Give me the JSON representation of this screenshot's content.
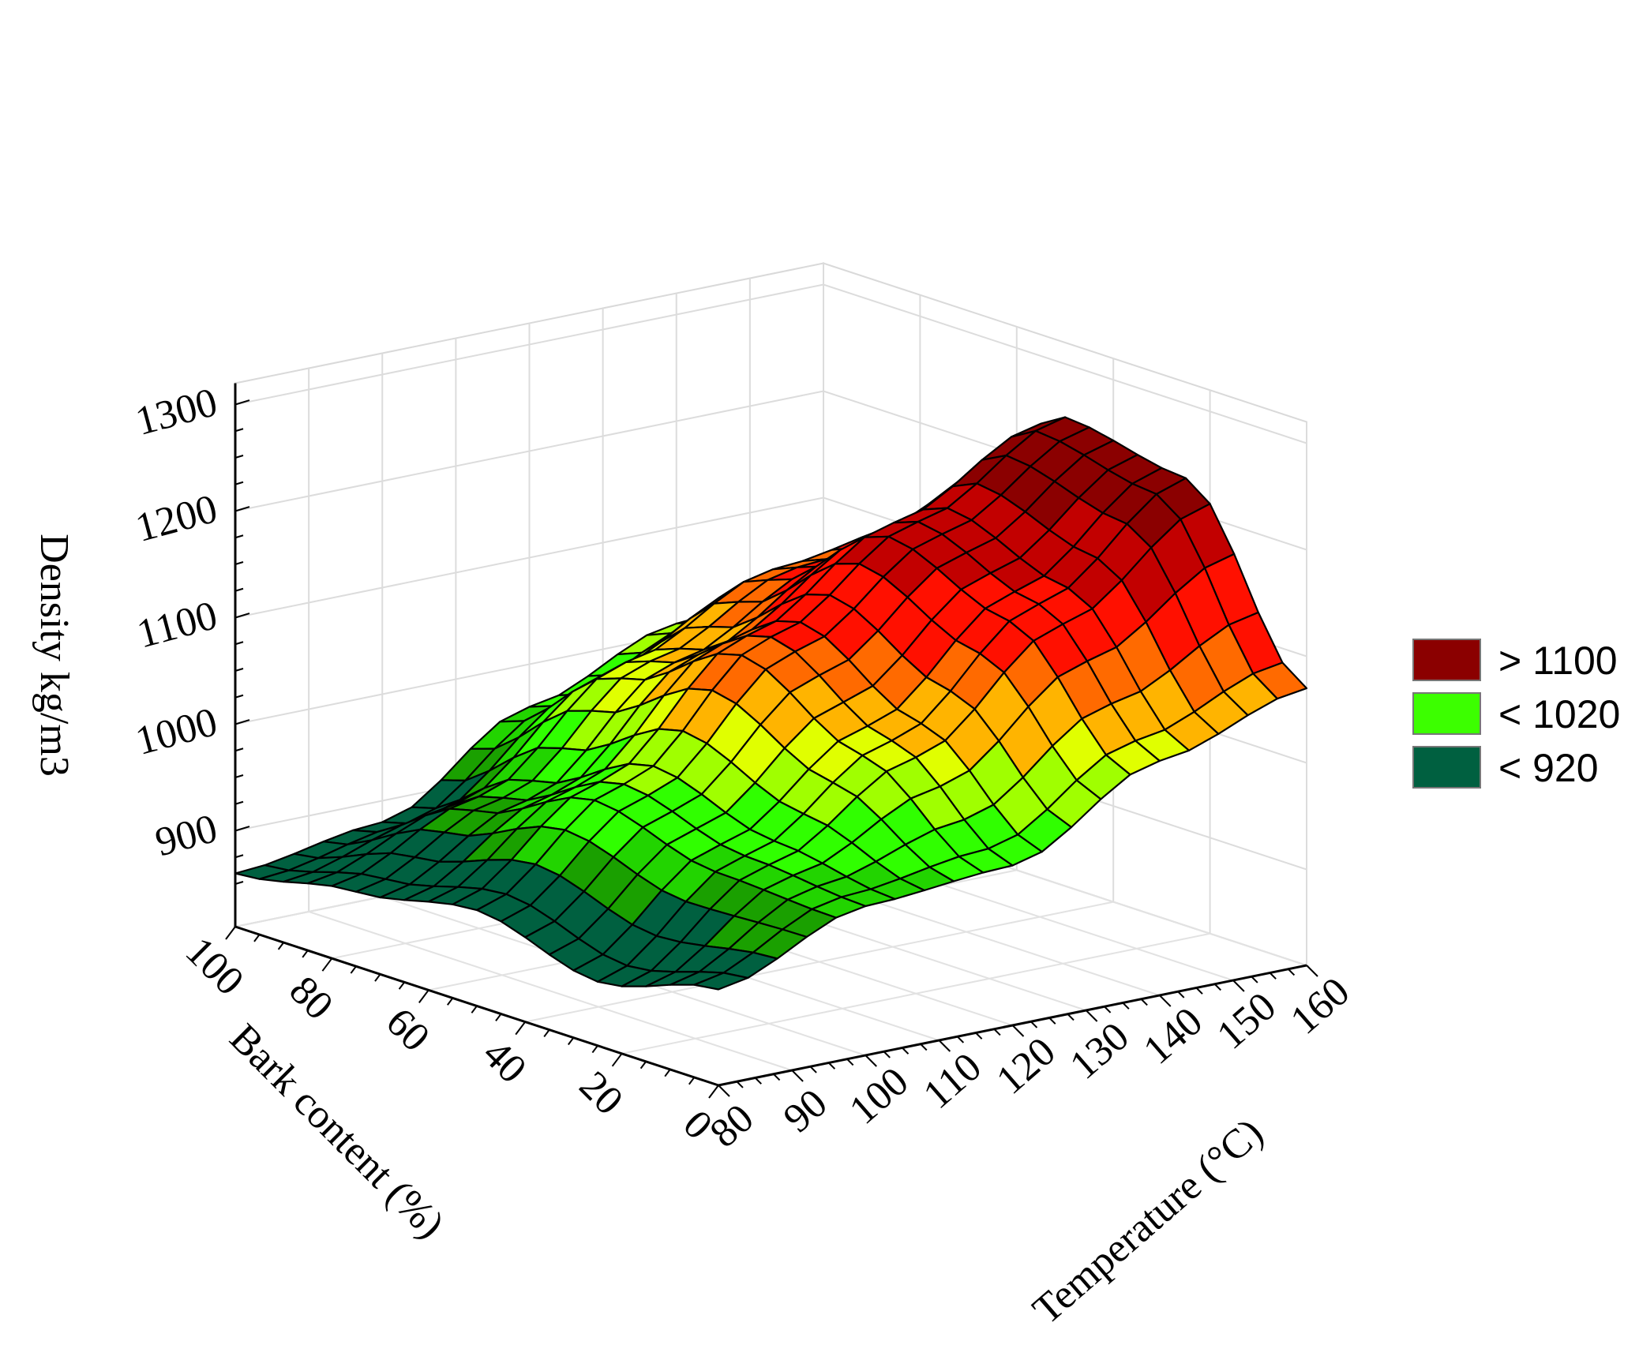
{
  "chart_data": {
    "type": "surface3d",
    "title": "",
    "xlabel": "Temperature (°C)",
    "ylabel": "Bark content (%)",
    "zlabel": "Density kg/m3",
    "x_ticks": [
      80,
      90,
      100,
      110,
      120,
      130,
      140,
      150,
      160
    ],
    "y_ticks": [
      0,
      20,
      40,
      60,
      80,
      100
    ],
    "z_ticks": [
      900,
      1000,
      1100,
      1200,
      1300
    ],
    "xlim": [
      80,
      160
    ],
    "ylim": [
      0,
      100
    ],
    "zlim": [
      810,
      1320
    ],
    "grid": true,
    "legend_position": "right",
    "legend": [
      {
        "label": "> 1100",
        "color": "#8b0000"
      },
      {
        "label": "< 1020",
        "color": "#3cff00"
      },
      {
        "label": "< 920",
        "color": "#006040"
      }
    ],
    "color_bands": [
      {
        "min": 1200,
        "color": "#8b0000"
      },
      {
        "min": 1150,
        "color": "#c20000"
      },
      {
        "min": 1100,
        "color": "#ff1000"
      },
      {
        "min": 1070,
        "color": "#ff6a00"
      },
      {
        "min": 1040,
        "color": "#ffb400"
      },
      {
        "min": 1020,
        "color": "#e0ff00"
      },
      {
        "min": 990,
        "color": "#a0ff00"
      },
      {
        "min": 960,
        "color": "#30ff00"
      },
      {
        "min": 940,
        "color": "#22d400"
      },
      {
        "min": 920,
        "color": "#1aa000"
      },
      {
        "min": 0,
        "color": "#006040"
      }
    ],
    "surface": {
      "x": [
        80,
        100,
        120,
        140,
        160
      ],
      "y": [
        0,
        25,
        50,
        75,
        100
      ],
      "z": [
        [
          900,
          950,
          960,
          1030,
          1070
        ],
        [
          870,
          960,
          1040,
          1140,
          1230
        ],
        [
          900,
          990,
          1100,
          1180,
          1250
        ],
        [
          880,
          940,
          1040,
          1100,
          1120
        ],
        [
          860,
          880,
          960,
          1010,
          1030
        ]
      ]
    }
  }
}
